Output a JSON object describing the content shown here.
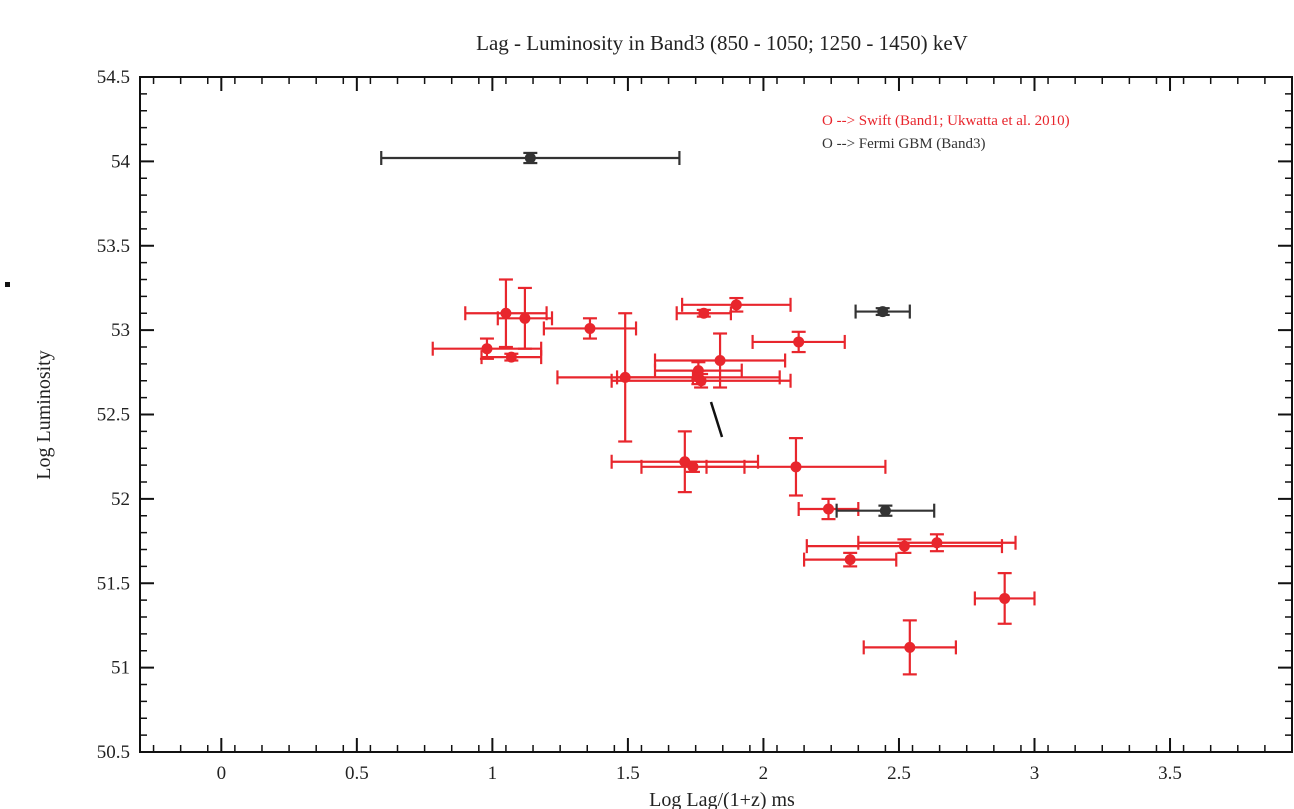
{
  "chart_data": {
    "type": "scatter",
    "title": "Lag - Luminosity in Band3 (850 - 1050; 1250 - 1450) keV",
    "xlabel": "Log Lag/(1+z) ms",
    "ylabel": "Log Luminosity",
    "xlim": [
      -0.3,
      3.95
    ],
    "ylim": [
      50.5,
      54.5
    ],
    "x_ticks": [
      0,
      0.5,
      1,
      1.5,
      2,
      2.5,
      3,
      3.5
    ],
    "x_tick_labels": [
      "0",
      "0.5",
      "1",
      "1.5",
      "2",
      "2.5",
      "3",
      "3.5"
    ],
    "y_ticks": [
      50.5,
      51,
      51.5,
      52,
      52.5,
      53,
      53.5,
      54,
      54.5
    ],
    "y_tick_labels": [
      "50.5",
      "51",
      "51.5",
      "52",
      "52.5",
      "53",
      "53.5",
      "54",
      "54.5"
    ],
    "legend_position": "top-right",
    "series": [
      {
        "name": "O --> Swift (Band1; Ukwatta et al. 2010)",
        "color": "#e8262d",
        "points": [
          {
            "x": 1.05,
            "y": 53.1,
            "xerr": 0.15,
            "yerr": 0.2
          },
          {
            "x": 1.12,
            "y": 53.07,
            "xerr": 0.1,
            "yerr": 0.18
          },
          {
            "x": 1.36,
            "y": 53.01,
            "xerr": 0.17,
            "yerr": 0.06
          },
          {
            "x": 0.98,
            "y": 52.89,
            "xerr": 0.2,
            "yerr": 0.06
          },
          {
            "x": 1.07,
            "y": 52.84,
            "xerr": 0.11,
            "yerr": 0.02
          },
          {
            "x": 1.49,
            "y": 52.72,
            "xerr": 0.25,
            "yerr": 0.38
          },
          {
            "x": 1.78,
            "y": 53.1,
            "xerr": 0.1,
            "yerr": 0.02
          },
          {
            "x": 1.9,
            "y": 53.15,
            "xerr": 0.2,
            "yerr": 0.04
          },
          {
            "x": 2.13,
            "y": 52.93,
            "xerr": 0.17,
            "yerr": 0.06
          },
          {
            "x": 1.84,
            "y": 52.82,
            "xerr": 0.24,
            "yerr": 0.16
          },
          {
            "x": 1.76,
            "y": 52.76,
            "xerr": 0.16,
            "yerr": 0.05
          },
          {
            "x": 1.76,
            "y": 52.72,
            "xerr": 0.3,
            "yerr": 0.04
          },
          {
            "x": 1.77,
            "y": 52.7,
            "xerr": 0.33,
            "yerr": 0.04
          },
          {
            "x": 1.71,
            "y": 52.22,
            "xerr": 0.27,
            "yerr": 0.18
          },
          {
            "x": 1.74,
            "y": 52.19,
            "xerr": 0.19,
            "yerr": 0.03
          },
          {
            "x": 2.12,
            "y": 52.19,
            "xerr": 0.33,
            "yerr": 0.17
          },
          {
            "x": 2.24,
            "y": 51.94,
            "xerr": 0.11,
            "yerr": 0.06
          },
          {
            "x": 2.64,
            "y": 51.74,
            "xerr": 0.29,
            "yerr": 0.05
          },
          {
            "x": 2.52,
            "y": 51.72,
            "xerr": 0.36,
            "yerr": 0.04
          },
          {
            "x": 2.32,
            "y": 51.64,
            "xerr": 0.17,
            "yerr": 0.04
          },
          {
            "x": 2.89,
            "y": 51.41,
            "xerr": 0.11,
            "yerr": 0.15
          },
          {
            "x": 2.54,
            "y": 51.12,
            "xerr": 0.17,
            "yerr": 0.16
          }
        ]
      },
      {
        "name": "O --> Fermi GBM (Band3)",
        "color": "#333333",
        "points": [
          {
            "x": 1.14,
            "y": 54.02,
            "xerr": 0.55,
            "yerr": 0.03
          },
          {
            "x": 2.44,
            "y": 53.11,
            "xerr": 0.1,
            "yerr": 0.02
          },
          {
            "x": 2.45,
            "y": 51.93,
            "xerr": 0.18,
            "yerr": 0.03
          }
        ]
      }
    ]
  }
}
